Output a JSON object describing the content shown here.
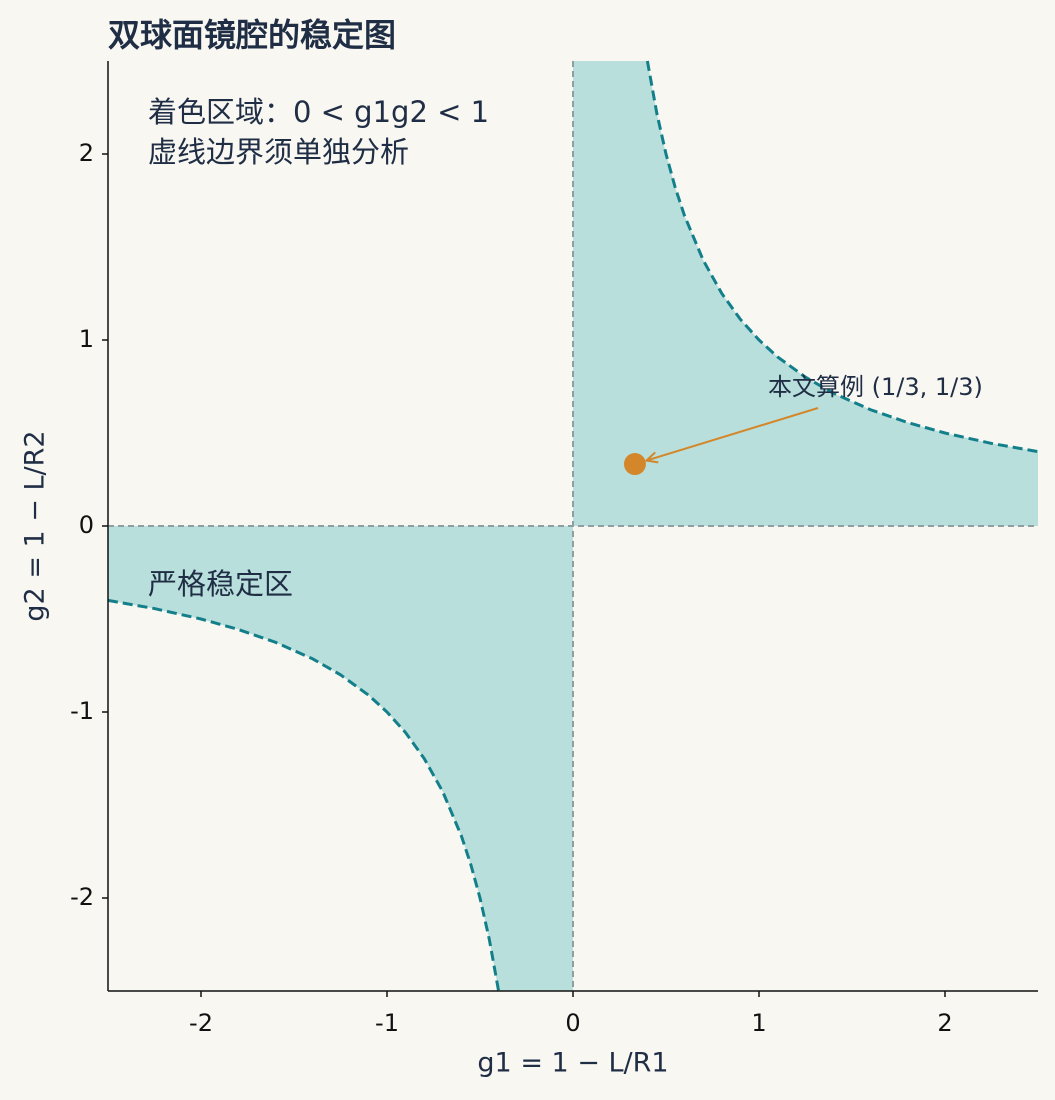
{
  "chart_data": {
    "type": "line",
    "title": "双球面镜腔的稳定图",
    "xlabel": "g1 = 1 − L/R1",
    "ylabel": "g2 = 1 − L/R2",
    "xlim": [
      -2.5,
      2.5
    ],
    "ylim": [
      -2.5,
      2.5
    ],
    "xticks": [
      -2,
      -1,
      0,
      1,
      2
    ],
    "yticks": [
      -2,
      -1,
      0,
      1,
      2
    ],
    "grid": false,
    "fill_color": "#b8dfdb",
    "reference_color": "#8f9ea0",
    "series": [
      {
        "color": "#137f8a",
        "x": [
          0.4,
          0.45,
          0.5,
          0.55,
          0.6,
          0.7,
          0.8,
          0.9,
          1,
          1.1,
          1.25,
          1.4,
          1.6,
          1.8,
          2,
          2.25,
          2.5
        ],
        "values": [
          2.5,
          2.222,
          2,
          1.818,
          1.667,
          1.429,
          1.25,
          1.111,
          1,
          0.909,
          0.8,
          0.714,
          0.625,
          0.556,
          0.5,
          0.444,
          0.4
        ]
      },
      {
        "color": "#137f8a",
        "x": [
          -2.5,
          -2.25,
          -2,
          -1.8,
          -1.6,
          -1.4,
          -1.25,
          -1.1,
          -1,
          -0.9,
          -0.8,
          -0.7,
          -0.6,
          -0.55,
          -0.5,
          -0.45,
          -0.4
        ],
        "values": [
          -0.4,
          -0.444,
          -0.5,
          -0.556,
          -0.625,
          -0.714,
          -0.8,
          -0.909,
          -1,
          -1.111,
          -1.25,
          -1.429,
          -1.667,
          -1.818,
          -2,
          -2.222,
          -2.5
        ]
      }
    ],
    "point": {
      "x": [
        0.333
      ],
      "values": [
        0.333
      ],
      "color": "#d4872a"
    },
    "annotation": "本文算例 (1/3, 1/3)",
    "note_lines": [
      "着色区域：0 < g1g2 < 1",
      "虚线边界须单独分析"
    ],
    "region_label": "严格稳定区"
  }
}
